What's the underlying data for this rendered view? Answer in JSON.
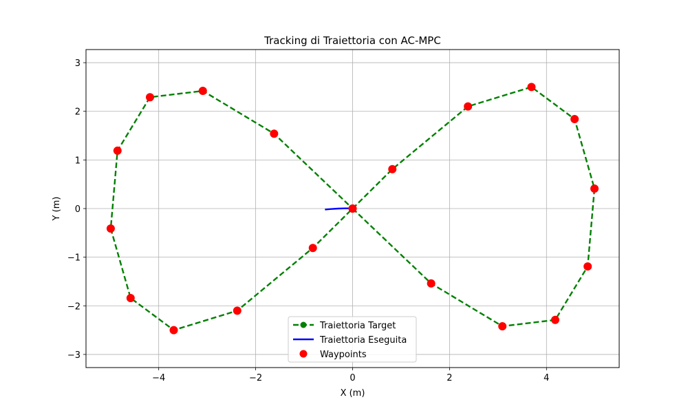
{
  "chart_data": {
    "type": "line",
    "title": "Tracking di Traiettoria con AC-MPC",
    "xlabel": "X (m)",
    "ylabel": "Y (m)",
    "xlim": [
      -5.5,
      5.5
    ],
    "ylim": [
      -3.27,
      3.27
    ],
    "xticks": [
      -4,
      -2,
      0,
      2,
      4
    ],
    "yticks": [
      -3,
      -2,
      -1,
      0,
      1,
      2,
      3
    ],
    "grid": true,
    "legend_position": "lower center",
    "series": [
      {
        "name": "Traiettoria Target",
        "style": "dashed line",
        "color": "#008000",
        "x": [
          0,
          0.82,
          2.38,
          3.69,
          4.58,
          4.99,
          4.85,
          4.18,
          3.09,
          1.62,
          0,
          -0.82,
          -2.38,
          -3.69,
          -4.58,
          -4.99,
          -4.85,
          -4.18,
          -3.09,
          -1.62,
          0
        ],
        "y": [
          0,
          0.81,
          2.1,
          2.5,
          1.84,
          0.41,
          -1.19,
          -2.29,
          -2.42,
          -1.54,
          0,
          -0.81,
          -2.1,
          -2.5,
          -1.84,
          -0.41,
          1.19,
          2.29,
          2.42,
          1.54,
          0
        ]
      },
      {
        "name": "Traiettoria Eseguita",
        "style": "solid line",
        "color": "#0000ff",
        "x": [
          -0.57,
          -0.45,
          -0.3,
          -0.15,
          -0.05,
          0
        ],
        "y": [
          -0.02,
          -0.01,
          0.0,
          0.005,
          0.005,
          0
        ]
      },
      {
        "name": "Waypoints",
        "style": "markers",
        "color": "#ff0000",
        "x": [
          0,
          0.82,
          2.38,
          3.69,
          4.58,
          4.99,
          4.85,
          4.18,
          3.09,
          1.62,
          0,
          -0.82,
          -2.38,
          -3.69,
          -4.58,
          -4.99,
          -4.85,
          -4.18,
          -3.09,
          -1.62
        ],
        "y": [
          0,
          0.81,
          2.1,
          2.5,
          1.84,
          0.41,
          -1.19,
          -2.29,
          -2.42,
          -1.54,
          0,
          -0.81,
          -2.1,
          -2.5,
          -1.84,
          -0.41,
          1.19,
          2.29,
          2.42,
          1.54
        ]
      }
    ]
  }
}
